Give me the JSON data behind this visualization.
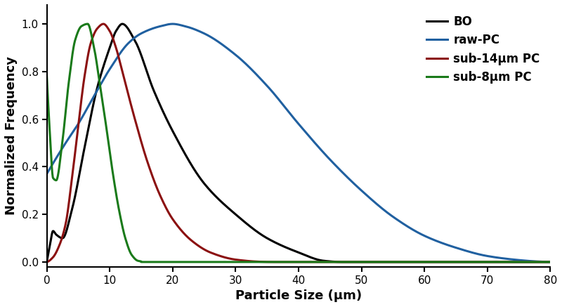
{
  "title": "",
  "xlabel": "Particle Size (μm)",
  "ylabel": "Normalized Frequency",
  "xlim": [
    0,
    80
  ],
  "ylim": [
    -0.02,
    1.08
  ],
  "xticks": [
    0,
    10,
    20,
    30,
    40,
    50,
    60,
    70,
    80
  ],
  "yticks": [
    0,
    0.2,
    0.4,
    0.6,
    0.8,
    1.0
  ],
  "series": [
    {
      "label": "BO",
      "color": "#000000",
      "lw": 2.2
    },
    {
      "label": "raw-PC",
      "color": "#2060A0",
      "lw": 2.2
    },
    {
      "label": "sub-14μm PC",
      "color": "#8B1010",
      "lw": 2.2
    },
    {
      "label": "sub-8μm PC",
      "color": "#1A7A1A",
      "lw": 2.2
    }
  ],
  "legend_loc": "upper right",
  "figsize": [
    8.0,
    4.37
  ],
  "dpi": 100,
  "background_color": "#ffffff",
  "spine_linewidth": 1.5
}
